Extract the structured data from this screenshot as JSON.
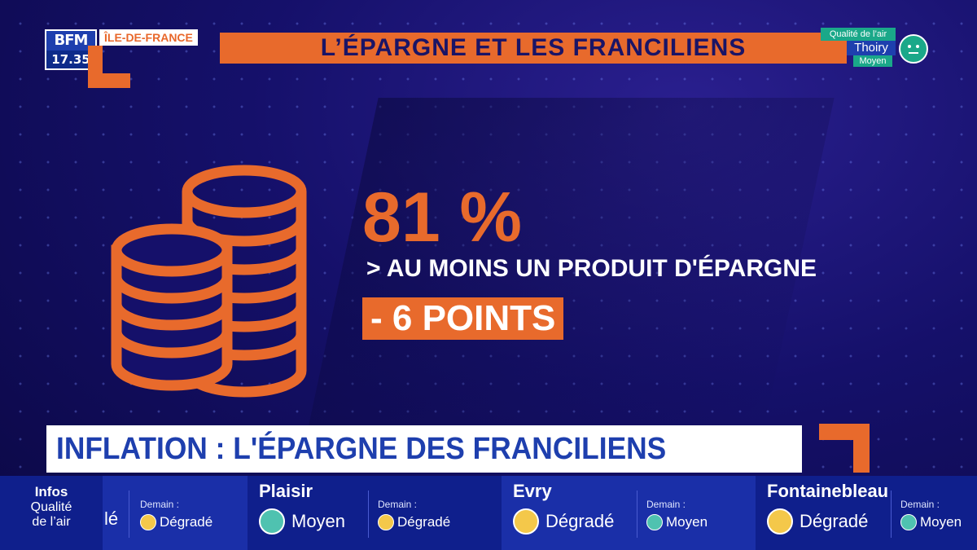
{
  "logo": {
    "brand": "BFM",
    "time": "17.35"
  },
  "region": "ÎLE-DE-FRANCE",
  "title": "L’ÉPARGNE ET LES FRANCILIENS",
  "air_widget": {
    "label": "Qualité de l’air",
    "city": "Thoiry",
    "status": "Moyen"
  },
  "stats": {
    "percent": "81 %",
    "description": "> AU MOINS UN PRODUIT D'ÉPARGNE",
    "change": "- 6 POINTS"
  },
  "headline": "INFLATION : L'ÉPARGNE DES FRANCILIENS RÉSISTE",
  "ticker": {
    "label_title": "Infos",
    "label_line1": "Qualité",
    "label_line2": "de l’air",
    "partial": {
      "today_fragment": "lé",
      "tomorrow_label": "Demain :",
      "tomorrow_status": "Dégradé"
    },
    "cities": [
      {
        "name": "Plaisir",
        "today": "Moyen",
        "tomorrow_label": "Demain :",
        "tomorrow": "Dégradé"
      },
      {
        "name": "Evry",
        "today": "Dégradé",
        "tomorrow_label": "Demain :",
        "tomorrow": "Moyen"
      },
      {
        "name": "Fontainebleau",
        "today": "Dégradé",
        "tomorrow_label": "Demain :",
        "tomorrow": "Moyen"
      }
    ]
  },
  "colors": {
    "accent": "#e86a2c",
    "navy": "#1a1466",
    "blue": "#1e3fae",
    "teal": "#1aa889",
    "yellow": "#f4c84a"
  },
  "icons": {
    "coins": "coin-stack-icon",
    "good_face": "neutral-face-icon",
    "bad_face": "sad-face-icon"
  }
}
